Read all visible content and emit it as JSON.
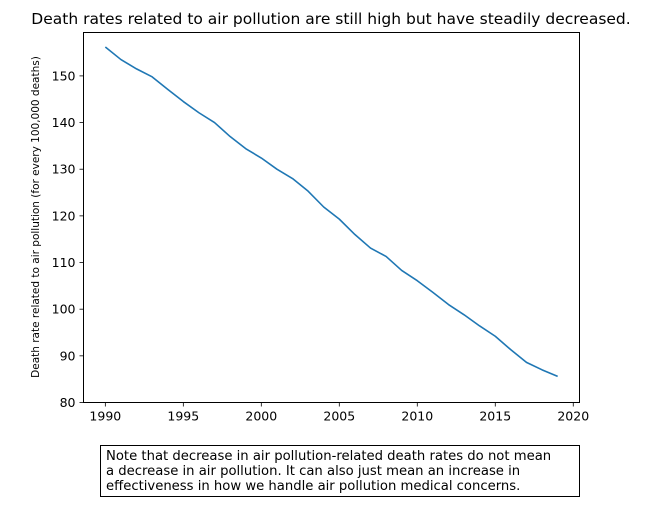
{
  "chart_data": {
    "type": "line",
    "title": "Death rates related to air pollution are still high but have steadily decreased.",
    "xlabel": "",
    "ylabel": "Death rate related to air pollution (for every 100,000 deaths)",
    "xlim": [
      1988.6,
      2020.4
    ],
    "ylim": [
      80,
      159.3
    ],
    "xticks": [
      1990,
      1995,
      2000,
      2005,
      2010,
      2015,
      2020
    ],
    "yticks": [
      80,
      90,
      100,
      110,
      120,
      130,
      140,
      150
    ],
    "grid": false,
    "series": [
      {
        "color": "#1f77b4",
        "x": [
          1990,
          1991,
          1992,
          1993,
          1994,
          1995,
          1996,
          1997,
          1998,
          1999,
          2000,
          2001,
          2002,
          2003,
          2004,
          2005,
          2006,
          2007,
          2008,
          2009,
          2010,
          2011,
          2012,
          2013,
          2014,
          2015,
          2016,
          2017,
          2018,
          2019
        ],
        "y": [
          156.2,
          153.5,
          151.5,
          149.8,
          147.1,
          144.5,
          142.1,
          140.0,
          137.0,
          134.4,
          132.4,
          130.0,
          128.0,
          125.3,
          121.9,
          119.3,
          116.0,
          113.1,
          111.3,
          108.3,
          106.1,
          103.6,
          101.0,
          98.8,
          96.4,
          94.2,
          91.3,
          88.6,
          87.0,
          85.6
        ]
      }
    ]
  },
  "note": "Note that decrease in air pollution-related death rates do not mean\na decrease in air pollution. It can also just mean an increase in\neffectiveness in how we handle air pollution medical concerns."
}
